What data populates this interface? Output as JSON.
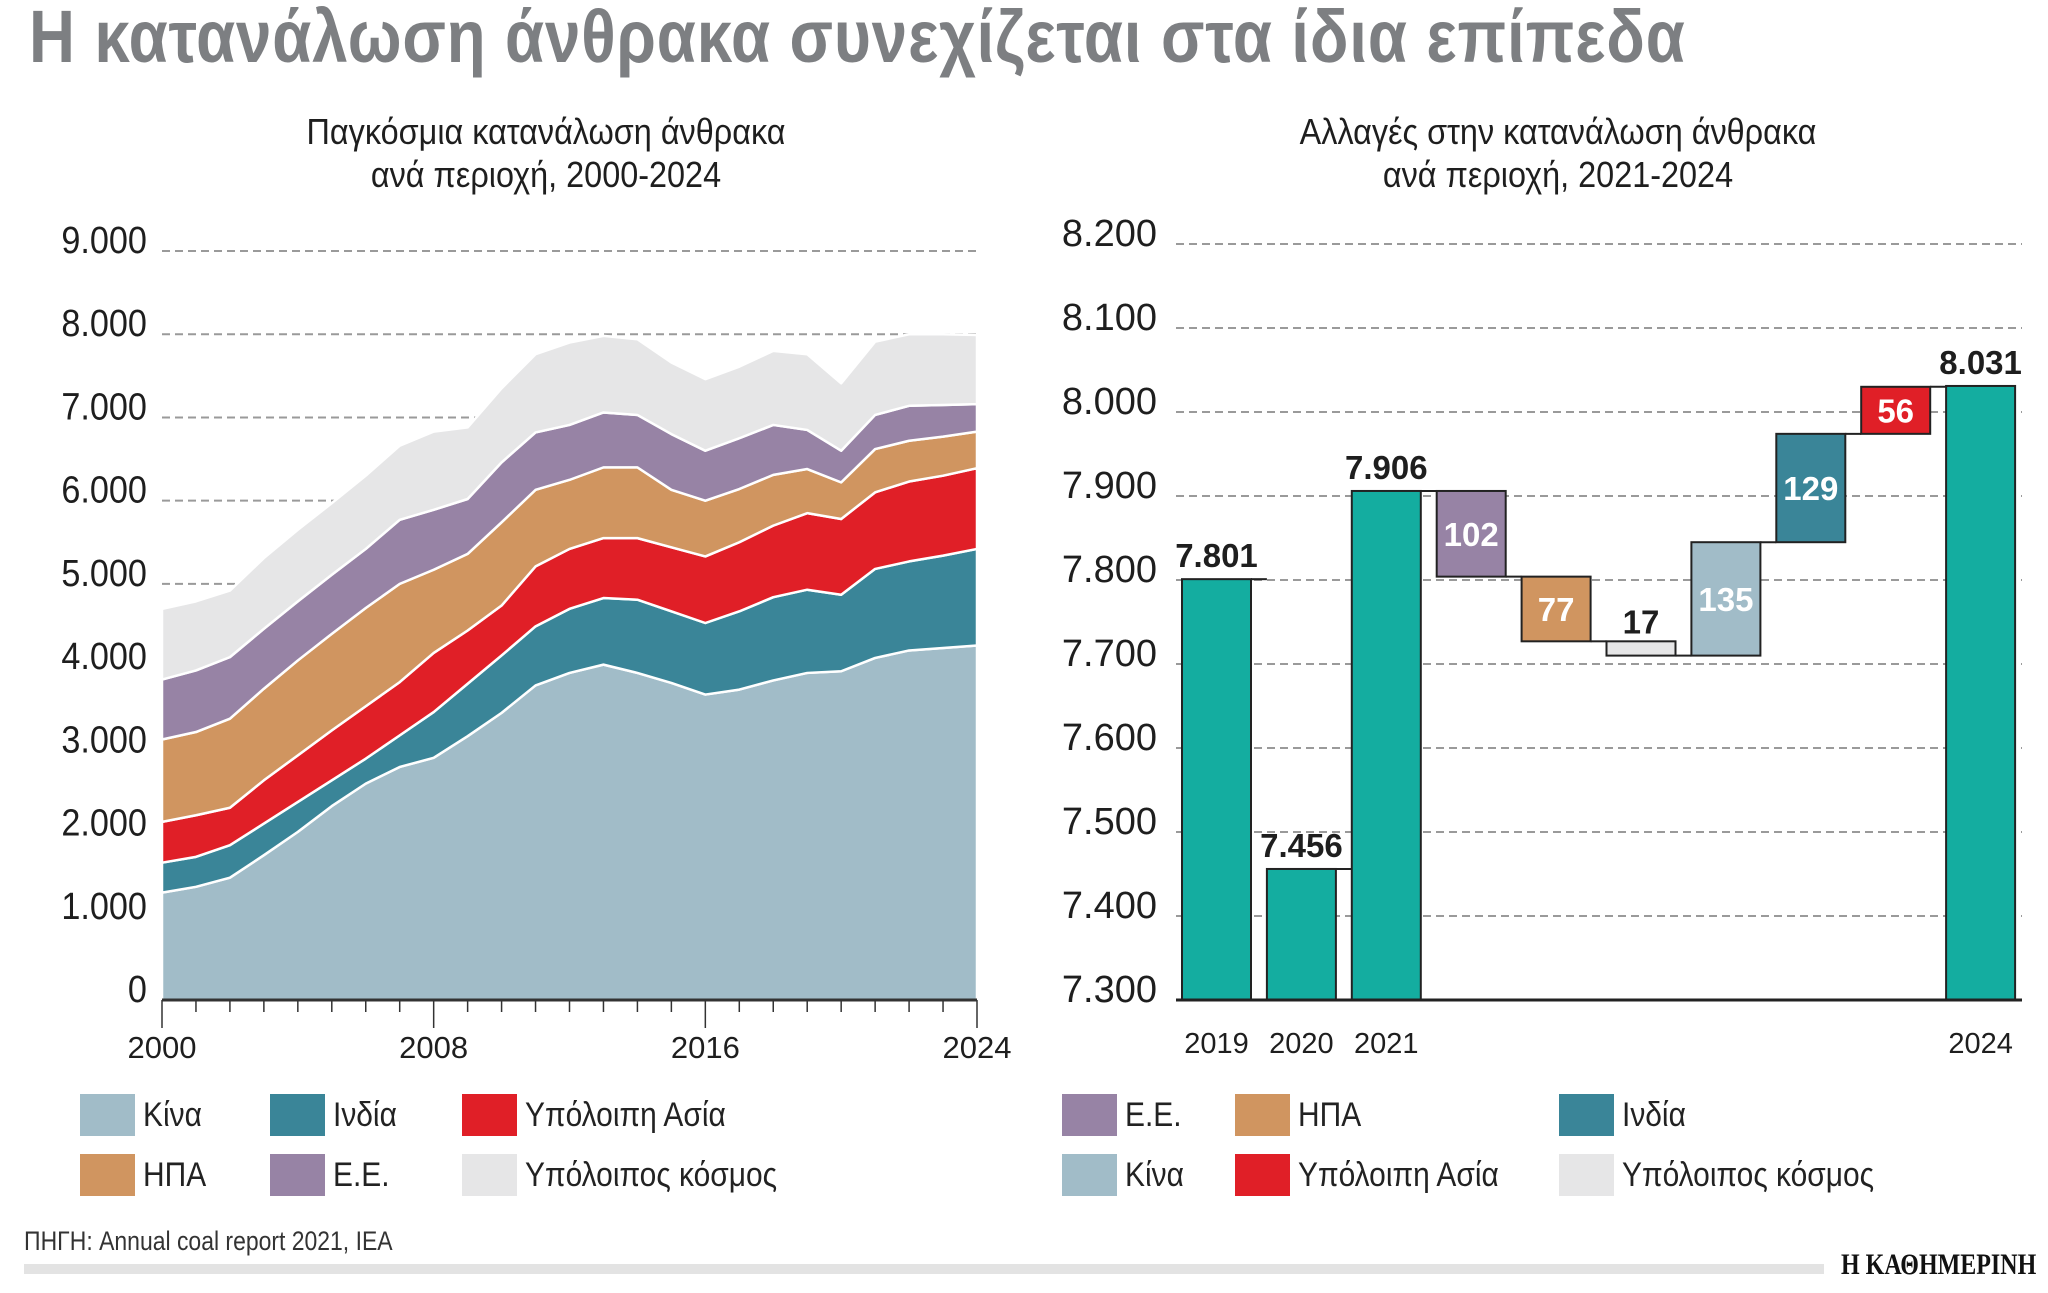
{
  "title": "Η κατανάλωση άνθρακα συνεχίζεται στα ίδια επίπεδα",
  "source": "ΠΗΓΗ: Annual coal report 2021, IEA",
  "logo": "Η ΚΑΘΗΜΕΡΙΝΗ",
  "colors": {
    "china": "#a1bcc8",
    "india": "#3a8598",
    "rest_asia": "#e01f27",
    "usa": "#d09560",
    "eu": "#9783a5",
    "rest_world": "#e6e6e7",
    "total": "#14ada0"
  },
  "chart_data": [
    {
      "type": "area",
      "stacked": true,
      "title": "Παγκόσμια κατανάλωση άνθρακα",
      "subtitle": "ανά περιοχή, 2000-2024",
      "x": [
        2000,
        2001,
        2002,
        2003,
        2004,
        2005,
        2006,
        2007,
        2008,
        2009,
        2010,
        2011,
        2012,
        2013,
        2014,
        2015,
        2016,
        2017,
        2018,
        2019,
        2020,
        2021,
        2022,
        2023,
        2024
      ],
      "xticks": [
        "2000",
        "2008",
        "2016",
        "2024"
      ],
      "yticks": [
        "0",
        "1.000",
        "2.000",
        "3.000",
        "4.000",
        "5.000",
        "6.000",
        "7.000",
        "8.000",
        "9.000"
      ],
      "ylim": [
        0,
        9000
      ],
      "grid": true,
      "legend_position": "bottom",
      "series": [
        {
          "name": "Κίνα",
          "color_key": "china",
          "values": [
            1290,
            1360,
            1470,
            1740,
            2020,
            2330,
            2600,
            2800,
            2910,
            3170,
            3450,
            3780,
            3930,
            4030,
            3930,
            3810,
            3670,
            3730,
            3840,
            3930,
            3950,
            4110,
            4200,
            4230,
            4260
          ]
        },
        {
          "name": "Ινδία",
          "color_key": "india",
          "values": [
            360,
            360,
            390,
            380,
            360,
            310,
            300,
            380,
            550,
            630,
            690,
            710,
            770,
            800,
            880,
            860,
            860,
            940,
            1000,
            1000,
            920,
            1070,
            1070,
            1110,
            1160
          ]
        },
        {
          "name": "Υπόλοιπη Ασία",
          "color_key": "rest_asia",
          "values": [
            490,
            500,
            450,
            520,
            560,
            600,
            630,
            640,
            710,
            640,
            600,
            720,
            720,
            720,
            740,
            770,
            800,
            830,
            860,
            920,
            910,
            920,
            960,
            960,
            970
          ]
        },
        {
          "name": "ΗΠΑ",
          "color_key": "usa",
          "values": [
            990,
            1000,
            1070,
            1100,
            1140,
            1160,
            1180,
            1180,
            1000,
            920,
            1000,
            920,
            830,
            850,
            850,
            690,
            670,
            640,
            610,
            530,
            440,
            520,
            490,
            470,
            440
          ]
        },
        {
          "name": "Ε.Ε.",
          "color_key": "eu",
          "values": [
            720,
            740,
            740,
            720,
            710,
            710,
            710,
            770,
            720,
            660,
            720,
            690,
            660,
            660,
            630,
            670,
            600,
            610,
            600,
            470,
            380,
            410,
            420,
            380,
            330
          ]
        },
        {
          "name": "Υπόλοιπος κόσμος",
          "color_key": "rest_world",
          "values": [
            850,
            830,
            800,
            850,
            860,
            860,
            880,
            890,
            940,
            860,
            890,
            940,
            990,
            920,
            910,
            860,
            860,
            860,
            890,
            910,
            810,
            880,
            860,
            850,
            830
          ]
        }
      ],
      "legend": [
        {
          "label": "Κίνα",
          "color_key": "china"
        },
        {
          "label": "Ινδία",
          "color_key": "india"
        },
        {
          "label": "Υπόλοιπη Ασία",
          "color_key": "rest_asia"
        },
        {
          "label": "ΗΠΑ",
          "color_key": "usa"
        },
        {
          "label": "Ε.Ε.",
          "color_key": "eu"
        },
        {
          "label": "Υπόλοιπος κόσμος",
          "color_key": "rest_world"
        }
      ]
    },
    {
      "type": "bar",
      "variant": "waterfall",
      "title": "Αλλαγές στην κατανάλωση άνθρακα",
      "subtitle": "ανά περιοχή, 2021-2024",
      "yticks": [
        "7.300",
        "7.400",
        "7.500",
        "7.600",
        "7.700",
        "7.800",
        "7.900",
        "8.000",
        "8.100",
        "8.200"
      ],
      "ylim": [
        7300,
        8200
      ],
      "grid": true,
      "legend_position": "bottom",
      "steps": [
        {
          "category": "2019",
          "kind": "total",
          "value": 7801,
          "label": "7.801",
          "color_key": "total"
        },
        {
          "category": "2020",
          "kind": "total",
          "value": 7456,
          "label": "7.456",
          "color_key": "total"
        },
        {
          "category": "2021",
          "kind": "total",
          "value": 7906,
          "label": "7.906",
          "color_key": "total"
        },
        {
          "category": "",
          "region": "Ε.Ε.",
          "kind": "delta",
          "value": -102,
          "label": "102",
          "color_key": "eu"
        },
        {
          "category": "",
          "region": "ΗΠΑ",
          "kind": "delta",
          "value": -77,
          "label": "77",
          "color_key": "usa"
        },
        {
          "category": "",
          "region": "Υπόλοιπος κόσμος",
          "kind": "delta",
          "value": -17,
          "label": "17",
          "color_key": "rest_world"
        },
        {
          "category": "",
          "region": "Κίνα",
          "kind": "delta",
          "value": 135,
          "label": "135",
          "color_key": "china"
        },
        {
          "category": "",
          "region": "Ινδία",
          "kind": "delta",
          "value": 129,
          "label": "129",
          "color_key": "india"
        },
        {
          "category": "",
          "region": "Υπόλοιπη Ασία",
          "kind": "delta",
          "value": 56,
          "label": "56",
          "color_key": "rest_asia"
        },
        {
          "category": "2024",
          "kind": "total",
          "value": 8031,
          "label": "8.031",
          "color_key": "total"
        }
      ],
      "legend": [
        {
          "label": "Ε.Ε.",
          "color_key": "eu"
        },
        {
          "label": "ΗΠΑ",
          "color_key": "usa"
        },
        {
          "label": "Ινδία",
          "color_key": "india"
        },
        {
          "label": "Κίνα",
          "color_key": "china"
        },
        {
          "label": "Υπόλοιπη Ασία",
          "color_key": "rest_asia"
        },
        {
          "label": "Υπόλοιπος κόσμος",
          "color_key": "rest_world"
        }
      ]
    }
  ]
}
